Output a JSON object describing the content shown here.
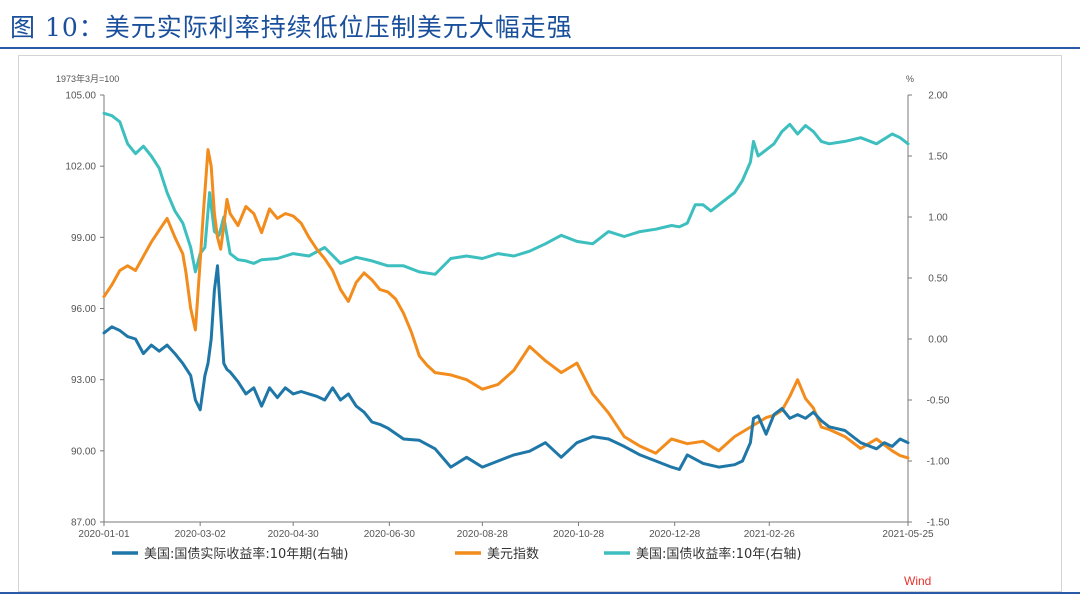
{
  "figure": {
    "title": "图 10：美元实际利率持续低位压制美元大幅走强",
    "source": "Wind"
  },
  "chart_data": {
    "type": "line",
    "left_axis": {
      "unit": "1973年3月=100",
      "ylim": [
        87,
        105
      ],
      "ticks": [
        "105.00",
        "102.00",
        "99.00",
        "96.00",
        "93.00",
        "90.00",
        "87.00"
      ],
      "tick_values": [
        105,
        102,
        99,
        96,
        93,
        90,
        87
      ]
    },
    "right_axis": {
      "unit": "%",
      "ylim": [
        -1.5,
        2.0
      ],
      "ticks": [
        "2.00",
        "1.50",
        "1.00",
        "0.50",
        "0.00",
        "-0.50",
        "-1.00",
        "-1.50"
      ],
      "tick_values": [
        2.0,
        1.5,
        1.0,
        0.5,
        0.0,
        -0.5,
        -1.0,
        -1.5
      ]
    },
    "x_ticks": [
      "2020-01-01",
      "2020-03-02",
      "2020-04-30",
      "2020-06-30",
      "2020-08-28",
      "2020-10-28",
      "2020-12-28",
      "2021-02-26",
      "2021-05-25"
    ],
    "x_tick_days": [
      0,
      61,
      120,
      181,
      240,
      301,
      362,
      422,
      510
    ],
    "x_range": [
      0,
      510
    ],
    "grid": false,
    "legend_position": "bottom",
    "series": [
      {
        "name": "美国:国债实际收益率:10年期(右轴)",
        "axis": "right",
        "color": "#1f77a8",
        "x": [
          0,
          5,
          10,
          15,
          20,
          25,
          30,
          35,
          40,
          45,
          50,
          55,
          58,
          61,
          64,
          66,
          68,
          70,
          72,
          74,
          76,
          78,
          80,
          85,
          90,
          95,
          100,
          105,
          110,
          115,
          120,
          125,
          130,
          135,
          140,
          145,
          150,
          155,
          160,
          165,
          170,
          175,
          180,
          190,
          200,
          210,
          220,
          230,
          240,
          250,
          260,
          270,
          280,
          290,
          300,
          310,
          320,
          330,
          340,
          350,
          360,
          365,
          370,
          380,
          390,
          400,
          405,
          410,
          412,
          415,
          420,
          425,
          430,
          435,
          440,
          445,
          450,
          455,
          460,
          470,
          480,
          490,
          495,
          500,
          505,
          510
        ],
        "values": [
          0.05,
          0.1,
          0.07,
          0.02,
          0.0,
          -0.12,
          -0.05,
          -0.1,
          -0.05,
          -0.12,
          -0.2,
          -0.3,
          -0.5,
          -0.58,
          -0.3,
          -0.2,
          0.0,
          0.4,
          0.6,
          0.2,
          -0.2,
          -0.25,
          -0.27,
          -0.35,
          -0.45,
          -0.4,
          -0.55,
          -0.4,
          -0.48,
          -0.4,
          -0.45,
          -0.43,
          -0.45,
          -0.47,
          -0.5,
          -0.4,
          -0.5,
          -0.45,
          -0.55,
          -0.6,
          -0.68,
          -0.7,
          -0.73,
          -0.82,
          -0.83,
          -0.9,
          -1.05,
          -0.97,
          -1.05,
          -1.0,
          -0.95,
          -0.92,
          -0.85,
          -0.97,
          -0.85,
          -0.8,
          -0.82,
          -0.88,
          -0.95,
          -1.0,
          -1.05,
          -1.07,
          -0.95,
          -1.02,
          -1.05,
          -1.03,
          -1.0,
          -0.85,
          -0.65,
          -0.63,
          -0.78,
          -0.62,
          -0.57,
          -0.65,
          -0.62,
          -0.65,
          -0.6,
          -0.67,
          -0.72,
          -0.75,
          -0.85,
          -0.9,
          -0.85,
          -0.88,
          -0.82,
          -0.85
        ]
      },
      {
        "name": "美元指数",
        "axis": "left",
        "color": "#f28c1c",
        "x": [
          0,
          5,
          10,
          15,
          20,
          25,
          30,
          35,
          40,
          45,
          50,
          52,
          55,
          58,
          61,
          63,
          66,
          68,
          70,
          72,
          74,
          76,
          78,
          80,
          85,
          90,
          95,
          100,
          105,
          110,
          115,
          120,
          125,
          130,
          135,
          140,
          145,
          150,
          155,
          160,
          165,
          170,
          175,
          180,
          185,
          190,
          195,
          200,
          205,
          210,
          220,
          230,
          240,
          250,
          260,
          270,
          280,
          290,
          300,
          310,
          320,
          330,
          340,
          350,
          360,
          370,
          380,
          390,
          400,
          410,
          420,
          425,
          430,
          435,
          440,
          445,
          450,
          455,
          460,
          470,
          480,
          490,
          500,
          505,
          510
        ],
        "values": [
          96.5,
          97.0,
          97.6,
          97.8,
          97.6,
          98.2,
          98.8,
          99.3,
          99.8,
          99.0,
          98.3,
          97.5,
          96.0,
          95.1,
          98.0,
          100.0,
          102.7,
          102.0,
          100.0,
          99.0,
          98.5,
          99.5,
          100.6,
          100.0,
          99.5,
          100.3,
          100.0,
          99.2,
          100.2,
          99.8,
          100.0,
          99.9,
          99.6,
          99.0,
          98.5,
          98.1,
          97.6,
          96.8,
          96.3,
          97.1,
          97.5,
          97.2,
          96.8,
          96.7,
          96.4,
          95.8,
          95.0,
          94.0,
          93.6,
          93.3,
          93.2,
          93.0,
          92.6,
          92.8,
          93.4,
          94.4,
          93.8,
          93.3,
          93.7,
          92.4,
          91.6,
          90.6,
          90.2,
          89.9,
          90.5,
          90.3,
          90.4,
          90.0,
          90.6,
          91.0,
          91.4,
          91.5,
          91.7,
          92.3,
          93.0,
          92.2,
          91.8,
          91.0,
          90.9,
          90.6,
          90.1,
          90.5,
          90.0,
          89.8,
          89.7
        ]
      },
      {
        "name": "美国:国债收益率:10年(右轴)",
        "axis": "right",
        "color": "#3dbfbf",
        "x": [
          0,
          5,
          10,
          15,
          20,
          25,
          30,
          35,
          40,
          45,
          50,
          55,
          58,
          61,
          64,
          67,
          70,
          73,
          76,
          80,
          85,
          90,
          95,
          100,
          110,
          120,
          130,
          140,
          150,
          160,
          170,
          180,
          190,
          200,
          210,
          220,
          230,
          240,
          250,
          260,
          270,
          280,
          290,
          300,
          310,
          320,
          330,
          340,
          350,
          360,
          365,
          370,
          375,
          380,
          385,
          390,
          395,
          400,
          405,
          410,
          412,
          415,
          420,
          425,
          430,
          435,
          440,
          445,
          450,
          455,
          460,
          470,
          480,
          490,
          500,
          505,
          510
        ],
        "values": [
          1.85,
          1.83,
          1.78,
          1.6,
          1.52,
          1.58,
          1.5,
          1.4,
          1.2,
          1.05,
          0.95,
          0.75,
          0.55,
          0.7,
          0.75,
          1.2,
          0.88,
          0.85,
          1.0,
          0.7,
          0.65,
          0.64,
          0.62,
          0.65,
          0.66,
          0.7,
          0.68,
          0.75,
          0.62,
          0.67,
          0.64,
          0.6,
          0.6,
          0.55,
          0.53,
          0.66,
          0.68,
          0.66,
          0.7,
          0.68,
          0.72,
          0.78,
          0.85,
          0.8,
          0.78,
          0.88,
          0.84,
          0.88,
          0.9,
          0.93,
          0.92,
          0.95,
          1.1,
          1.1,
          1.05,
          1.1,
          1.15,
          1.2,
          1.3,
          1.45,
          1.62,
          1.5,
          1.55,
          1.6,
          1.7,
          1.76,
          1.68,
          1.75,
          1.7,
          1.62,
          1.6,
          1.62,
          1.65,
          1.6,
          1.68,
          1.65,
          1.6
        ]
      }
    ]
  }
}
